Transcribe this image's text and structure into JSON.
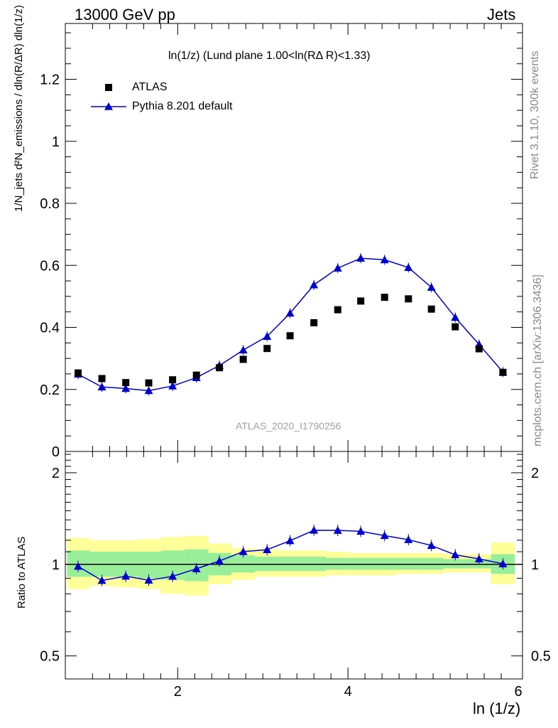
{
  "header": {
    "left": "13000 GeV pp",
    "right": "Jets"
  },
  "side_labels": {
    "rivet": "Rivet 3.1.10,  300k events",
    "site": "mcplots.cern.ch [arXiv:1306.3436]"
  },
  "watermark": "ATLAS_2020_I1790256",
  "chart_data": [
    {
      "type": "scatter",
      "title": "ln(1/z) (Lund plane 1.00<ln(RΔ R)<1.33)",
      "ylabel": "1/N_jets d²N_emissions / dln(R/ΔR) dln(1/z)",
      "xlabel": "",
      "xlim": [
        0.68,
        6.05
      ],
      "ylim": [
        0,
        1.38
      ],
      "yticks": [
        "0",
        "0.2",
        "0.4",
        "0.6",
        "0.8",
        "1",
        "1.2"
      ],
      "legend": [
        "ATLAS",
        "Pythia 8.201 default"
      ],
      "x": [
        0.83,
        1.11,
        1.39,
        1.66,
        1.94,
        2.22,
        2.49,
        2.77,
        3.05,
        3.32,
        3.6,
        3.88,
        4.15,
        4.43,
        4.71,
        4.98,
        5.26,
        5.54,
        5.82
      ],
      "series": [
        {
          "name": "ATLAS",
          "marker": "square",
          "color": "#000000",
          "values": [
            0.253,
            0.235,
            0.222,
            0.221,
            0.231,
            0.246,
            0.27,
            0.297,
            0.332,
            0.373,
            0.415,
            0.457,
            0.485,
            0.497,
            0.492,
            0.459,
            0.402,
            0.331,
            0.255
          ]
        },
        {
          "name": "Pythia 8.201 default",
          "marker": "triangle",
          "color": "#0000cc",
          "values": [
            0.249,
            0.208,
            0.203,
            0.196,
            0.211,
            0.238,
            0.277,
            0.327,
            0.371,
            0.446,
            0.537,
            0.591,
            0.623,
            0.618,
            0.593,
            0.529,
            0.432,
            0.345,
            0.256
          ]
        }
      ]
    },
    {
      "type": "line",
      "ylabel": "Ratio to ATLAS",
      "xlabel": "ln (1/z)",
      "xlim": [
        0.68,
        6.05
      ],
      "ylim": [
        0.42,
        2.35
      ],
      "log_y": true,
      "yticks": [
        "0.5",
        "1",
        "2"
      ],
      "xticks": [
        "2",
        "4",
        "6"
      ],
      "bin_edges": [
        0.7,
        0.97,
        1.25,
        1.53,
        1.8,
        2.08,
        2.36,
        2.63,
        2.91,
        3.18,
        3.46,
        3.74,
        4.01,
        4.29,
        4.57,
        4.84,
        5.12,
        5.4,
        5.68,
        5.96
      ],
      "band_inner": [
        [
          0.91,
          1.11
        ],
        [
          0.91,
          1.1
        ],
        [
          0.91,
          1.1
        ],
        [
          0.9,
          1.1
        ],
        [
          0.89,
          1.11
        ],
        [
          0.88,
          1.12
        ],
        [
          0.92,
          1.09
        ],
        [
          0.94,
          1.07
        ],
        [
          0.95,
          1.06
        ],
        [
          0.95,
          1.06
        ],
        [
          0.95,
          1.06
        ],
        [
          0.96,
          1.05
        ],
        [
          0.96,
          1.05
        ],
        [
          0.96,
          1.05
        ],
        [
          0.96,
          1.05
        ],
        [
          0.96,
          1.05
        ],
        [
          0.97,
          1.04
        ],
        [
          0.97,
          1.04
        ],
        [
          0.93,
          1.08
        ]
      ],
      "band_outer": [
        [
          0.83,
          1.22
        ],
        [
          0.85,
          1.2
        ],
        [
          0.84,
          1.2
        ],
        [
          0.83,
          1.21
        ],
        [
          0.8,
          1.23
        ],
        [
          0.79,
          1.24
        ],
        [
          0.86,
          1.17
        ],
        [
          0.89,
          1.13
        ],
        [
          0.91,
          1.12
        ],
        [
          0.91,
          1.11
        ],
        [
          0.91,
          1.11
        ],
        [
          0.92,
          1.1
        ],
        [
          0.92,
          1.09
        ],
        [
          0.92,
          1.09
        ],
        [
          0.93,
          1.09
        ],
        [
          0.93,
          1.09
        ],
        [
          0.94,
          1.08
        ],
        [
          0.94,
          1.08
        ],
        [
          0.86,
          1.18
        ]
      ],
      "series": [
        {
          "name": "Pythia 8.201 default",
          "color": "#0000cc",
          "values": [
            0.985,
            0.885,
            0.914,
            0.887,
            0.913,
            0.967,
            1.026,
            1.101,
            1.117,
            1.196,
            1.294,
            1.293,
            1.284,
            1.243,
            1.205,
            1.153,
            1.075,
            1.042,
            1.004
          ]
        }
      ]
    }
  ]
}
